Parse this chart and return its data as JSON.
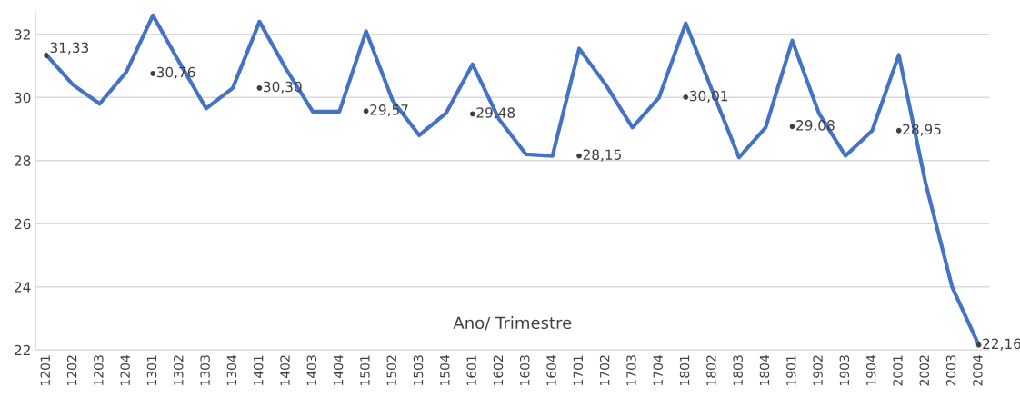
{
  "chart_data": {
    "type": "line",
    "xlabel": "Ano/ Trimestre",
    "categories": [
      "1201",
      "1202",
      "1203",
      "1204",
      "1301",
      "1302",
      "1303",
      "1304",
      "1401",
      "1402",
      "1403",
      "1404",
      "1501",
      "1502",
      "1503",
      "1504",
      "1601",
      "1602",
      "1603",
      "1604",
      "1701",
      "1702",
      "1703",
      "1704",
      "1801",
      "1802",
      "1803",
      "1804",
      "1901",
      "1902",
      "1903",
      "1904",
      "2001",
      "2002",
      "2003",
      "2004"
    ],
    "series": [
      {
        "color": "#4472c4",
        "values": [
          31.35,
          30.4,
          29.8,
          30.8,
          32.6,
          31.1,
          29.65,
          30.3,
          32.4,
          30.9,
          29.55,
          29.55,
          32.1,
          29.9,
          28.8,
          29.5,
          31.05,
          29.3,
          28.2,
          28.15,
          31.55,
          30.4,
          29.05,
          30.0,
          32.35,
          30.2,
          28.1,
          29.05,
          31.8,
          29.5,
          28.15,
          28.95,
          31.35,
          27.3,
          24.0,
          22.16
        ]
      },
      {
        "type": "scatter",
        "marker": "circle",
        "color": "#404040",
        "values": [
          31.33,
          null,
          null,
          null,
          30.76,
          null,
          null,
          null,
          30.3,
          null,
          null,
          null,
          29.57,
          null,
          null,
          null,
          29.48,
          null,
          null,
          null,
          28.15,
          null,
          null,
          null,
          30.01,
          null,
          null,
          null,
          29.08,
          null,
          null,
          null,
          28.95,
          null,
          null,
          22.16
        ],
        "value_labels": [
          "31,33",
          null,
          null,
          null,
          "30,76",
          null,
          null,
          null,
          "30,30",
          null,
          null,
          null,
          "29,57",
          null,
          null,
          null,
          "29,48",
          null,
          null,
          null,
          "28,15",
          null,
          null,
          null,
          "30,01",
          null,
          null,
          null,
          "29,08",
          null,
          null,
          null,
          "28,95",
          null,
          null,
          "22,16"
        ]
      }
    ],
    "ylim": [
      22,
      32.7
    ],
    "yticks": [
      22,
      24,
      26,
      28,
      30,
      32
    ],
    "grid": "y",
    "marker": "none",
    "line_style": "solid"
  }
}
